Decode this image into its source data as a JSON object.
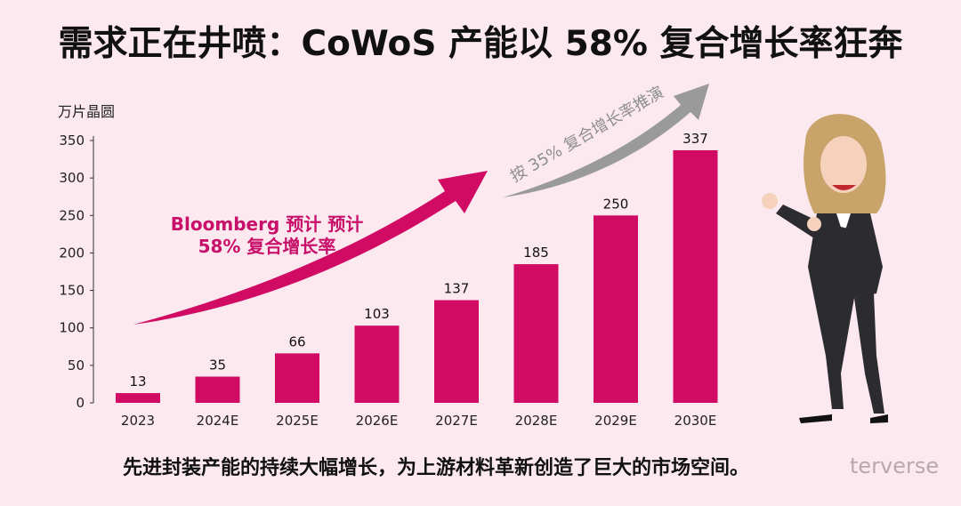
{
  "chart_data": {
    "type": "bar",
    "title": "需求正在井喷：CoWoS 产能以 58% 复合增长率狂奔",
    "ylabel": "万片晶圆",
    "xlabel": "",
    "categories": [
      "2023",
      "2024E",
      "2025E",
      "2026E",
      "2027E",
      "2028E",
      "2029E",
      "2030E"
    ],
    "values": [
      13,
      35,
      66,
      103,
      137,
      185,
      250,
      337
    ],
    "ylim": [
      0,
      350
    ],
    "yticks": [
      0,
      50,
      100,
      150,
      200,
      250,
      300,
      350
    ],
    "grid": false,
    "annotations": {
      "bloomberg_line1": "Bloomberg 预计 预计",
      "bloomberg_line2": "58% 复合增长率",
      "projection": "按 35% 复合增长率推演"
    },
    "colors": {
      "bar": "#d10a64",
      "arrow_main": "#d10a64",
      "arrow_projection": "#9a9a9a",
      "background": "#fbe9ef"
    }
  },
  "caption": "先进封装产能的持续大幅增长，为上游材料革新创造了巨大的市场空间。",
  "watermark": "terverse"
}
